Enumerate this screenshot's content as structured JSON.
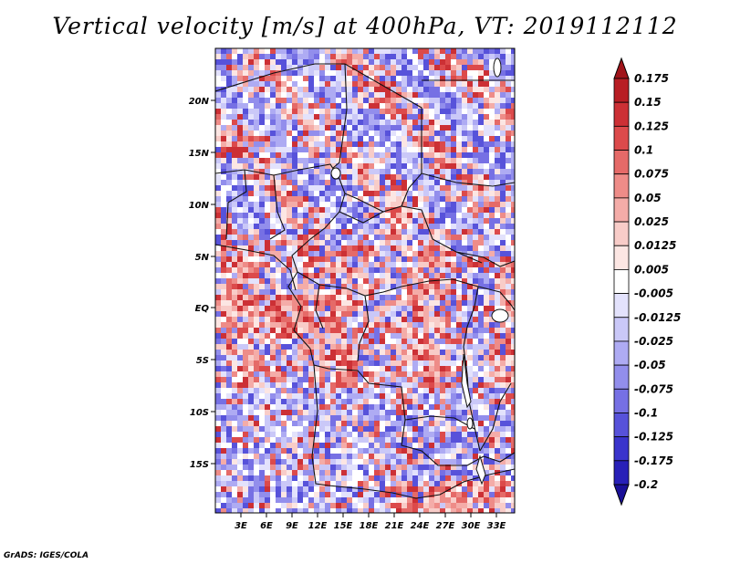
{
  "title": "Vertical velocity [m/s] at 400hPa, VT: 2019112112",
  "credit": "GrADS: IGES/COLA",
  "map": {
    "lat_ticks": [
      "20N",
      "15N",
      "10N",
      "5N",
      "EQ",
      "5S",
      "10S",
      "15S"
    ],
    "lon_ticks": [
      "3E",
      "6E",
      "9E",
      "12E",
      "15E",
      "18E",
      "21E",
      "24E",
      "27E",
      "30E",
      "33E"
    ]
  },
  "colorbar": {
    "labels": [
      "0.175",
      "0.15",
      "0.125",
      "0.1",
      "0.075",
      "0.05",
      "0.025",
      "0.0125",
      "0.005",
      "-0.005",
      "-0.0125",
      "-0.025",
      "-0.05",
      "-0.075",
      "-0.1",
      "-0.125",
      "-0.175",
      "-0.2"
    ],
    "colors": [
      "#a0141a",
      "#b81e24",
      "#cc3035",
      "#dc4a4b",
      "#e56a68",
      "#ee8c88",
      "#f4aca8",
      "#f8ccc8",
      "#fce6e3",
      "#ffffff",
      "#e3e2fc",
      "#cac8f8",
      "#aeabf3",
      "#928eec",
      "#7670e4",
      "#5752da",
      "#3a34cc",
      "#2820b8",
      "#1a1098"
    ]
  }
}
